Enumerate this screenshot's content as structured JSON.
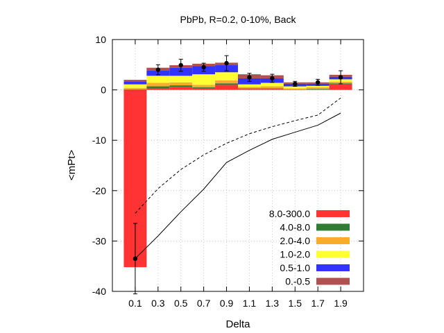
{
  "chart_data": {
    "type": "bar",
    "title": "PbPb, R=0.2, 0-10%, Back",
    "xlabel": "Delta",
    "ylabel": "<mPt>",
    "ylim": [
      -40,
      10
    ],
    "yticks": [
      "10",
      "0",
      "-10",
      "-20",
      "-30",
      "-40"
    ],
    "yticks_values": [
      10,
      0,
      -10,
      -20,
      -30,
      -40
    ],
    "categories": [
      "0.1",
      "0.3",
      "0.5",
      "0.7",
      "0.9",
      "1.1",
      "1.3",
      "1.5",
      "1.7",
      "1.9"
    ],
    "x": [
      0.1,
      0.3,
      0.5,
      0.7,
      0.9,
      1.1,
      1.3,
      1.5,
      1.7,
      1.9
    ],
    "bin_width": 0.2,
    "xlim": [
      -0.1,
      2.1
    ],
    "grid": true,
    "legend_position": "bottom-right",
    "series": [
      {
        "name": "8.0-300.0",
        "color": "#ff3333",
        "values": [
          -35.2,
          0.3,
          0.6,
          0.3,
          1.0,
          0.2,
          0.2,
          0.1,
          0.1,
          1.1
        ]
      },
      {
        "name": "4.0-8.0",
        "color": "#2e7d32",
        "values": [
          0.1,
          0.4,
          0.3,
          0.2,
          0.3,
          0.1,
          0.1,
          0.0,
          0.1,
          0.2
        ]
      },
      {
        "name": "2.0-4.0",
        "color": "#f9ac2c",
        "values": [
          0.3,
          0.7,
          0.6,
          0.5,
          0.6,
          0.3,
          0.4,
          0.2,
          0.3,
          0.3
        ]
      },
      {
        "name": "1.0-2.0",
        "color": "#ffff33",
        "values": [
          0.7,
          1.4,
          1.3,
          2.1,
          1.6,
          0.5,
          0.7,
          0.4,
          0.3,
          0.5
        ]
      },
      {
        "name": "0.5-1.0",
        "color": "#3333ff",
        "values": [
          0.6,
          1.0,
          1.6,
          1.6,
          1.4,
          1.2,
          0.9,
          0.5,
          0.4,
          0.5
        ]
      },
      {
        "name": "0.-0.5",
        "color": "#b05050",
        "values": [
          0.3,
          0.6,
          0.5,
          0.5,
          0.5,
          0.8,
          0.6,
          0.3,
          0.3,
          0.4
        ]
      }
    ],
    "points": {
      "values": [
        -33.5,
        4.0,
        4.9,
        4.5,
        5.3,
        2.5,
        2.3,
        1.2,
        1.5,
        2.5
      ],
      "errors": [
        7.0,
        1.0,
        1.2,
        0.8,
        1.5,
        0.8,
        0.8,
        0.5,
        0.6,
        1.3
      ]
    },
    "solid_line": {
      "x": [
        0.1,
        0.3,
        0.5,
        0.7,
        0.9,
        1.1,
        1.3,
        1.5,
        1.7,
        1.9
      ],
      "y": [
        -33.5,
        -29.0,
        -24.2,
        -19.7,
        -14.4,
        -12.0,
        -9.8,
        -8.4,
        -7.0,
        -4.6
      ]
    },
    "dashed_line": {
      "x": [
        0.1,
        0.3,
        0.5,
        0.7,
        0.9,
        1.1,
        1.3,
        1.5,
        1.7,
        1.9
      ],
      "y": [
        -24.5,
        -19.6,
        -15.8,
        -12.9,
        -10.6,
        -8.7,
        -7.3,
        -6.1,
        -5.0,
        -1.6
      ]
    }
  }
}
